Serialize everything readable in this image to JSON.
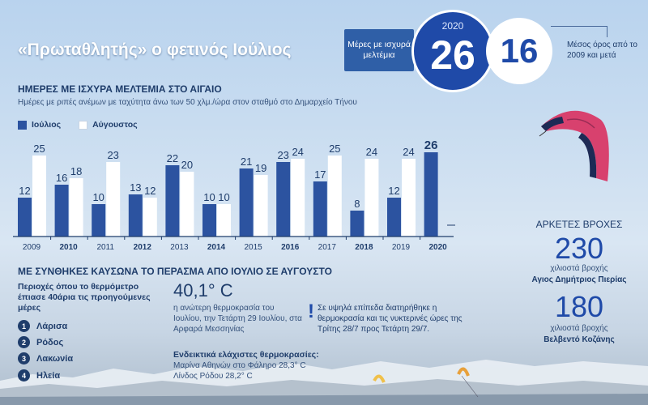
{
  "header": {
    "title": "«Πρωταθλητής» ο φετινός Ιούλιος",
    "box_label": "Μέρες με ισχυρά μελτέμια",
    "year": "2020",
    "value_2020": "26",
    "average_value": "16",
    "average_label": "Μέσος όρος από το 2009 και μετά"
  },
  "chart_data": {
    "type": "bar",
    "title": "ΗΜΕΡΕΣ ΜΕ ΙΣΧΥΡΑ ΜΕΛΤΕΜΙΑ ΣΤΟ ΑΙΓΑΙΟ",
    "subtitle": "Ημέρες με ριπές ανέμων με ταχύτητα άνω των 50 χλμ./ώρα στον σταθμό στο Δημαρχείο Τήνου",
    "categories": [
      "2009",
      "2010",
      "2011",
      "2012",
      "2013",
      "2014",
      "2015",
      "2016",
      "2017",
      "2018",
      "2019",
      "2020"
    ],
    "bold_categories": [
      "2010",
      "2012",
      "2014",
      "2016",
      "2018",
      "2020"
    ],
    "series": [
      {
        "name": "Ιούλιος",
        "color": "#2c53a0",
        "values": [
          12,
          16,
          10,
          13,
          22,
          10,
          21,
          23,
          17,
          8,
          12,
          26
        ]
      },
      {
        "name": "Αύγουστος",
        "color": "#ffffff",
        "values": [
          25,
          18,
          23,
          12,
          20,
          10,
          19,
          24,
          25,
          24,
          24,
          null
        ]
      }
    ],
    "ylim": [
      0,
      28
    ],
    "legend_position": "top-left",
    "grid": false
  },
  "heat": {
    "title": "ΜΕ ΣΥΝΘΗΚΕΣ ΚΑΥΣΩΝΑ ΤΟ ΠΕΡΑΣΜΑ ΑΠΟ ΙΟΥΛΙΟ ΣΕ ΑΥΓΟΥΣΤΟ",
    "areas_desc": "Περιοχές όπου το θερμόμετρο έπιασε 40άρια τις προηγούμενες μέρες",
    "areas": [
      {
        "num": "1",
        "name": "Λάρισα"
      },
      {
        "num": "2",
        "name": "Ρόδος"
      },
      {
        "num": "3",
        "name": "Λακωνία"
      },
      {
        "num": "4",
        "name": "Ηλεία"
      }
    ],
    "max_temp": "40,1° C",
    "max_temp_desc": "η ανώτερη θερμοκρασία του Ιουλίου, την Τετάρτη 29 Ιουλίου, στα Αρφαρά Μεσσηνίας",
    "min_title": "Ενδεικτικά ελάχιστες θερμοκρασίες:",
    "min_1": "Μαρίνα Αθηνών στο Φάληρο 28,3° C",
    "min_2": "Λίνδος Ρόδου 28,2° C",
    "note_mark": "!",
    "note": "Σε υψηλά επίπεδα διατηρήθηκε η θερμοκρασία και τις νυκτερινές ώρες της Τρίτης 28/7 προς Τετάρτη 29/7."
  },
  "rain": {
    "title": "ΑΡΚΕΤΕΣ ΒΡΟΧΕΣ",
    "r1_value": "230",
    "r1_unit": "χιλιοστά βροχής",
    "r1_place": "Αγιος Δημήτριος Πιερίας",
    "r2_value": "180",
    "r2_unit": "χιλιοστά βροχής",
    "r2_place": "Βελβεντό Κοζάνης"
  },
  "colors": {
    "july": "#2c53a0",
    "august": "#ffffff",
    "kite_main": "#d8416e",
    "kite_dark": "#1d2a55"
  },
  "icons": [
    "kite-icon"
  ]
}
